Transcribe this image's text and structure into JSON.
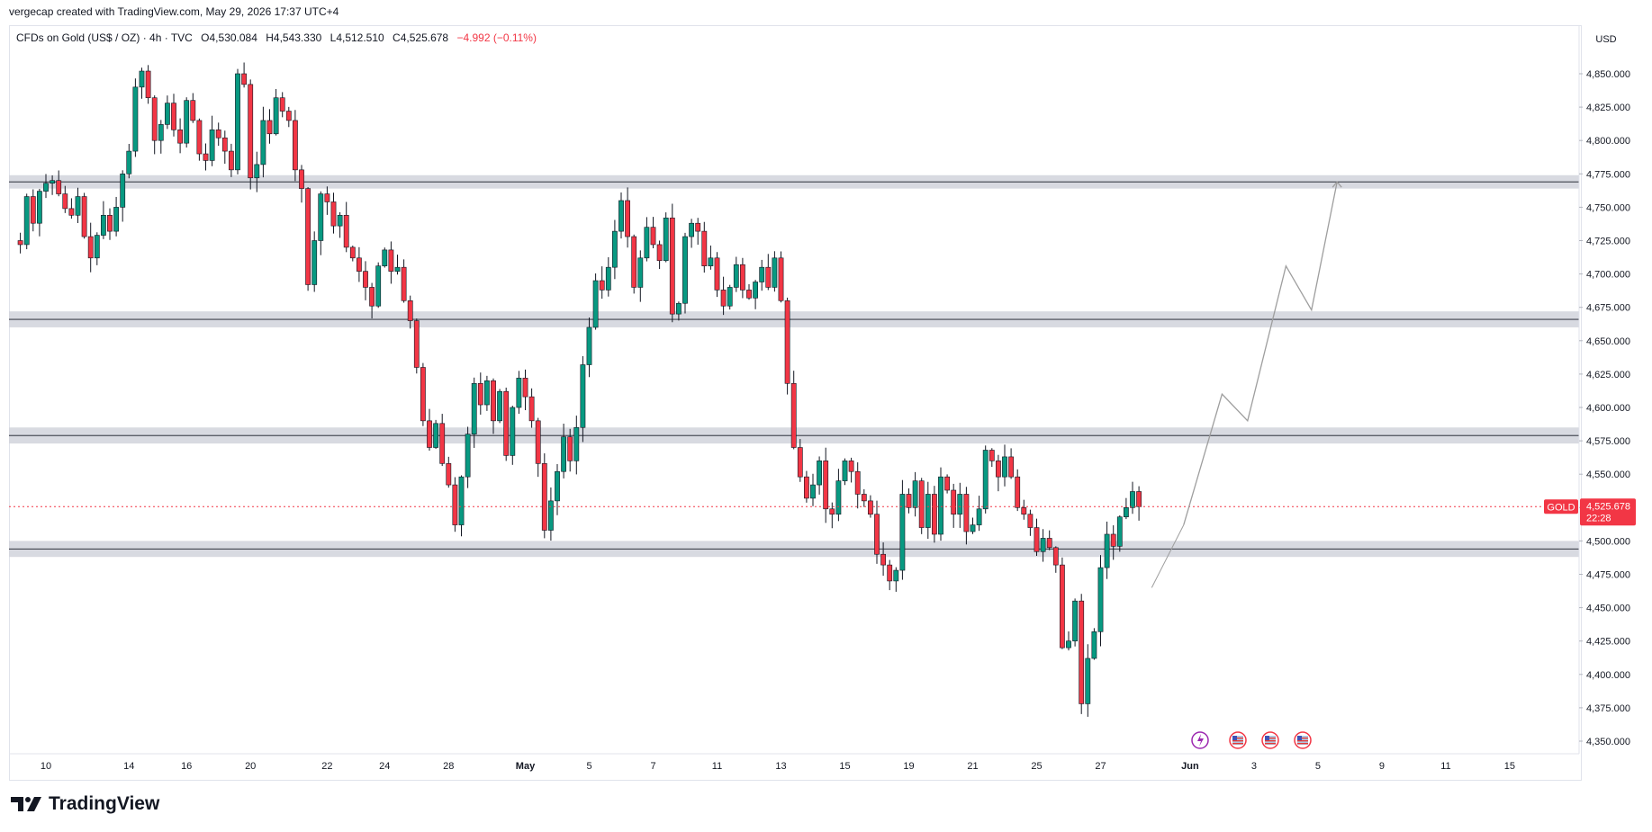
{
  "header": {
    "attribution": "vergecap created with TradingView.com, May 29, 2026 17:37 UTC+4"
  },
  "legend": {
    "symbol": "CFDs on Gold (US$ / OZ) · 4h · TVC",
    "open": "O4,530.084",
    "high": "H4,543.330",
    "low": "L4,512.510",
    "close": "C4,525.678",
    "change": "−4.992 (−0.11%)"
  },
  "axis": {
    "currency": "USD"
  },
  "price_tag": {
    "symbol": "GOLD",
    "price": "4,525.678",
    "countdown": "22:28"
  },
  "footer": {
    "brand": "TradingView"
  },
  "colors": {
    "up": "#089981",
    "down": "#f23645",
    "zone": "#d1d4dc",
    "projection": "#9e9e9e"
  },
  "chart_data": {
    "type": "candlestick",
    "symbol": "GOLD",
    "timeframe": "4h",
    "ylim": [
      4335,
      4880
    ],
    "y_ticks": [
      4350,
      4375,
      4400,
      4425,
      4450,
      4475,
      4500,
      4525,
      4550,
      4575,
      4600,
      4625,
      4650,
      4675,
      4700,
      4725,
      4750,
      4775,
      4800,
      4825,
      4850
    ],
    "y_tick_labels": [
      "4,350.000",
      "4,375.000",
      "4,400.000",
      "4,425.000",
      "4,450.000",
      "4,475.000",
      "4,500.000",
      "4,525.000",
      "4,550.000",
      "4,575.000",
      "4,600.000",
      "4,625.000",
      "4,650.000",
      "4,675.000",
      "4,700.000",
      "4,725.000",
      "4,750.000",
      "4,775.000",
      "4,800.000",
      "4,825.000",
      "4,850.000"
    ],
    "x_ticks": [
      {
        "label": "10",
        "i": 5
      },
      {
        "label": "14",
        "i": 18
      },
      {
        "label": "16",
        "i": 27
      },
      {
        "label": "20",
        "i": 37
      },
      {
        "label": "22",
        "i": 49
      },
      {
        "label": "24",
        "i": 58
      },
      {
        "label": "28",
        "i": 68
      },
      {
        "label": "May",
        "i": 80
      },
      {
        "label": "5",
        "i": 90
      },
      {
        "label": "7",
        "i": 100
      },
      {
        "label": "11",
        "i": 110
      },
      {
        "label": "13",
        "i": 120
      },
      {
        "label": "15",
        "i": 130
      },
      {
        "label": "19",
        "i": 140
      },
      {
        "label": "21",
        "i": 150
      },
      {
        "label": "25",
        "i": 160
      },
      {
        "label": "27",
        "i": 170
      },
      {
        "label": "Jun",
        "i": 184
      },
      {
        "label": "3",
        "i": 194
      },
      {
        "label": "5",
        "i": 204
      },
      {
        "label": "9",
        "i": 214
      },
      {
        "label": "11",
        "i": 224
      },
      {
        "label": "15",
        "i": 234
      }
    ],
    "current_price": 4525.678,
    "zones": [
      {
        "low": 4764,
        "high": 4774
      },
      {
        "low": 4660,
        "high": 4672
      },
      {
        "low": 4573,
        "high": 4585
      },
      {
        "low": 4488,
        "high": 4500
      }
    ],
    "close_path": [
      4725,
      4722,
      4758,
      4738,
      4762,
      4768,
      4770,
      4760,
      4749,
      4744,
      4758,
      4728,
      4712,
      4729,
      4744,
      4732,
      4750,
      4775,
      4792,
      4840,
      4852,
      4832,
      4800,
      4812,
      4828,
      4808,
      4798,
      4830,
      4815,
      4790,
      4785,
      4808,
      4802,
      4792,
      4778,
      4850,
      4842,
      4772,
      4782,
      4815,
      4805,
      4832,
      4822,
      4815,
      4778,
      4764,
      4692,
      4725,
      4760,
      4754,
      4736,
      4744,
      4720,
      4712,
      4702,
      4690,
      4676,
      4706,
      4718,
      4702,
      4705,
      4680,
      4665,
      4630,
      4590,
      4570,
      4588,
      4558,
      4542,
      4512,
      4548,
      4580,
      4618,
      4602,
      4620,
      4590,
      4612,
      4564,
      4600,
      4622,
      4608,
      4590,
      4558,
      4508,
      4530,
      4552,
      4578,
      4560,
      4585,
      4632,
      4660,
      4695,
      4688,
      4705,
      4732,
      4755,
      4728,
      4690,
      4712,
      4735,
      4722,
      4710,
      4742,
      4670,
      4678,
      4728,
      4738,
      4732,
      4706,
      4712,
      4688,
      4676,
      4690,
      4707,
      4688,
      4682,
      4694,
      4705,
      4690,
      4712,
      4680,
      4618,
      4570,
      4548,
      4532,
      4542,
      4560,
      4524,
      4520,
      4545,
      4560,
      4552,
      4535,
      4530,
      4520,
      4490,
      4482,
      4470,
      4478,
      4535,
      4525,
      4545,
      4510,
      4535,
      4505,
      4548,
      4538,
      4520,
      4535,
      4507,
      4512,
      4524,
      4568,
      4560,
      4548,
      4563,
      4548,
      4525,
      4520,
      4510,
      4492,
      4502,
      4495,
      4482,
      4420,
      4425,
      4455,
      4378,
      4412,
      4432,
      4480,
      4505,
      4496,
      4518,
      4525,
      4537,
      4525.678
    ],
    "projection": [
      {
        "i": 183,
        "y": 4512
      },
      {
        "i": 189,
        "y": 4610
      },
      {
        "i": 193,
        "y": 4590
      },
      {
        "i": 199,
        "y": 4706
      },
      {
        "i": 203,
        "y": 4673
      },
      {
        "i": 207,
        "y": 4769
      }
    ]
  }
}
